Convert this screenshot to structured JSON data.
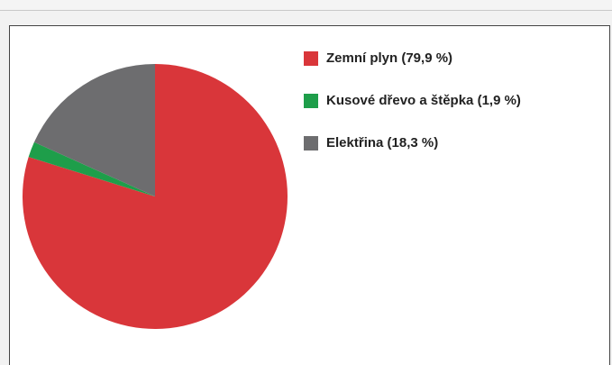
{
  "chart_data": {
    "type": "pie",
    "categories": [
      "Zemní plyn (79,9 %)",
      "Kusové dřevo a štěpka (1,9 %)",
      "Elektřina (18,3 %)"
    ],
    "values": [
      79.9,
      1.9,
      18.3
    ],
    "colors": [
      "#d9363a",
      "#1e9e4a",
      "#6d6d6f"
    ],
    "legend": "right"
  }
}
